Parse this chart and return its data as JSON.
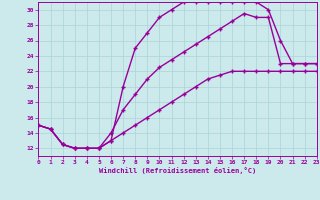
{
  "xlabel": "Windchill (Refroidissement éolien,°C)",
  "bg_color": "#cce9ec",
  "grid_color": "#aad4d8",
  "line_color": "#990099",
  "xlim": [
    0,
    23
  ],
  "ylim": [
    11,
    31
  ],
  "xticks": [
    0,
    1,
    2,
    3,
    4,
    5,
    6,
    7,
    8,
    9,
    10,
    11,
    12,
    13,
    14,
    15,
    16,
    17,
    18,
    19,
    20,
    21,
    22,
    23
  ],
  "yticks": [
    12,
    14,
    16,
    18,
    20,
    22,
    24,
    26,
    28,
    30
  ],
  "curve1_x": [
    0,
    1,
    2,
    3,
    4,
    5,
    6,
    7,
    8,
    9,
    10,
    11,
    12,
    13,
    14,
    15,
    16,
    17,
    18,
    19,
    20,
    21,
    22,
    23
  ],
  "curve1_y": [
    15,
    14.5,
    12.5,
    12,
    12,
    12,
    13,
    20,
    25,
    27,
    29,
    30,
    31,
    31,
    31,
    31,
    31,
    31,
    31,
    30,
    26,
    23,
    23,
    23
  ],
  "curve2_x": [
    0,
    1,
    2,
    3,
    4,
    5,
    6,
    7,
    8,
    9,
    10,
    11,
    12,
    13,
    14,
    15,
    16,
    17,
    18,
    19,
    20,
    21,
    22,
    23
  ],
  "curve2_y": [
    15,
    14.5,
    12.5,
    12,
    12,
    12,
    14,
    17,
    19,
    21,
    22.5,
    23.5,
    24.5,
    25.5,
    26.5,
    27.5,
    28.5,
    29.5,
    29,
    29,
    23,
    23,
    23,
    23
  ],
  "curve3_x": [
    0,
    1,
    2,
    3,
    4,
    5,
    6,
    7,
    8,
    9,
    10,
    11,
    12,
    13,
    14,
    15,
    16,
    17,
    18,
    19,
    20,
    21,
    22,
    23
  ],
  "curve3_y": [
    15,
    14.5,
    12.5,
    12,
    12,
    12,
    13,
    14,
    15,
    16,
    17,
    18,
    19,
    20,
    21,
    21.5,
    22,
    22,
    22,
    22,
    22,
    22,
    22,
    22
  ]
}
